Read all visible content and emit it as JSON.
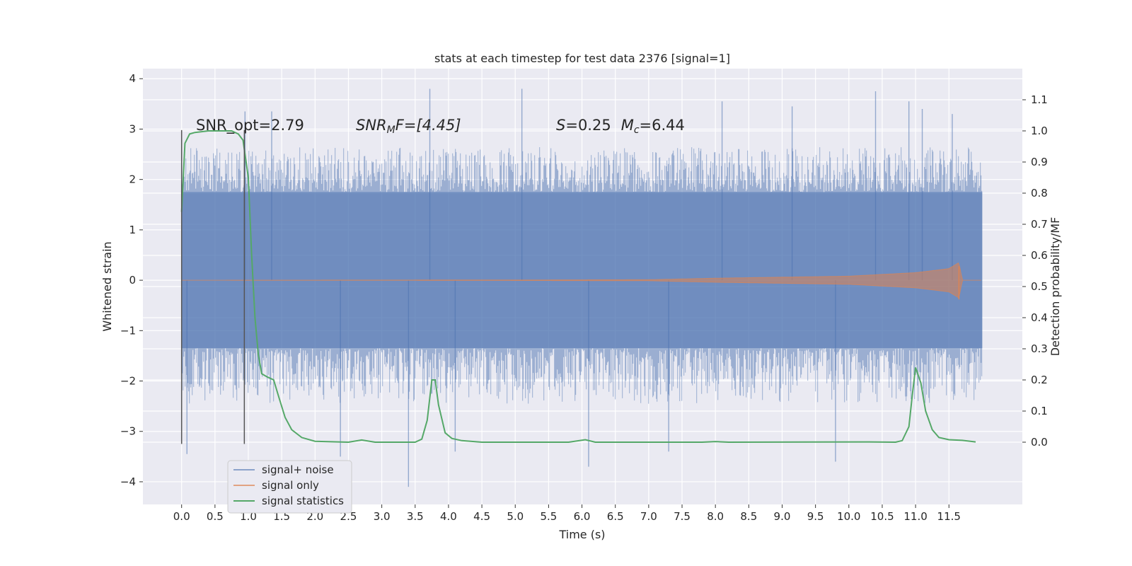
{
  "colors": {
    "background": "#eaeaf2",
    "grid": "#ffffff",
    "signal_noise": "#4c72b0",
    "signal_only": "#dd8452",
    "signal_statistics": "#55a868",
    "marker_lines": "#555555"
  },
  "chart_data": {
    "type": "line",
    "title": "stats at each timestep for test data 2376 [signal=1]",
    "xlabel": "Time (s)",
    "ylabel": "Whitened strain",
    "ylabel_right": "Detection probability/MF",
    "xlim": [
      -0.58,
      12.6
    ],
    "ylim": [
      -4.45,
      4.2
    ],
    "ylim_right": [
      -0.2,
      1.2
    ],
    "x_ticks": [
      0.0,
      0.5,
      1.0,
      1.5,
      2.0,
      2.5,
      3.0,
      3.5,
      4.0,
      4.5,
      5.0,
      5.5,
      6.0,
      6.5,
      7.0,
      7.5,
      8.0,
      8.5,
      9.0,
      9.5,
      10.0,
      10.5,
      11.0,
      11.5
    ],
    "x_tick_labels": [
      "0.0",
      "0.5",
      "1.0",
      "1.5",
      "2.0",
      "2.5",
      "3.0",
      "3.5",
      "4.0",
      "4.5",
      "5.0",
      "5.5",
      "6.0",
      "6.5",
      "7.0",
      "7.5",
      "8.0",
      "8.5",
      "9.0",
      "9.5",
      "10.0",
      "10.5",
      "11.0",
      "11.5"
    ],
    "y_ticks": [
      -4,
      -3,
      -2,
      -1,
      0,
      1,
      2,
      3,
      4
    ],
    "y_tick_labels": [
      "−4",
      "−3",
      "−2",
      "−1",
      "0",
      "1",
      "2",
      "3",
      "4"
    ],
    "y_right_ticks": [
      0.0,
      0.1,
      0.2,
      0.3,
      0.4,
      0.5,
      0.6,
      0.7,
      0.8,
      0.9,
      1.0,
      1.1
    ],
    "y_right_tick_labels": [
      "0.0",
      "0.1",
      "0.2",
      "0.3",
      "0.4",
      "0.5",
      "0.6",
      "0.7",
      "0.8",
      "0.9",
      "1.0",
      "1.1"
    ],
    "grid": true,
    "legend_position": "lower-left",
    "annotations": {
      "snr_opt": "SNR_opt=2.79",
      "snr_mf_prefix": "SNR",
      "snr_mf_sub": "M",
      "snr_mf_suffix": "F=[4.45]",
      "s_label": "S",
      "s_value": "=0.25",
      "mc_label": "M",
      "mc_sub": "c",
      "mc_value": "=6.44"
    },
    "vertical_markers": [
      {
        "x": 0.0,
        "y_range": [
          -3.25,
          2.98
        ]
      },
      {
        "x": 0.94,
        "y_range": [
          -3.25,
          2.98
        ]
      }
    ],
    "series": [
      {
        "name": "signal+ noise",
        "axis": "left",
        "x_range": [
          0.0,
          12.0
        ],
        "band_core": [
          -1.35,
          1.75
        ],
        "typical_peak_range": [
          -2.4,
          2.6
        ],
        "spikes": [
          {
            "x": 0.08,
            "y": -3.45
          },
          {
            "x": 0.95,
            "y": 3.35
          },
          {
            "x": 1.35,
            "y": 3.35
          },
          {
            "x": 3.4,
            "y": -4.1
          },
          {
            "x": 3.72,
            "y": 3.8
          },
          {
            "x": 2.38,
            "y": -3.5
          },
          {
            "x": 4.1,
            "y": -3.4
          },
          {
            "x": 5.1,
            "y": 3.8
          },
          {
            "x": 6.1,
            "y": -3.7
          },
          {
            "x": 8.1,
            "y": 3.55
          },
          {
            "x": 9.15,
            "y": 3.45
          },
          {
            "x": 10.4,
            "y": 3.75
          },
          {
            "x": 10.9,
            "y": 3.55
          },
          {
            "x": 11.1,
            "y": 3.4
          },
          {
            "x": 9.8,
            "y": -3.6
          },
          {
            "x": 11.55,
            "y": 3.3
          },
          {
            "x": 7.3,
            "y": -3.4
          }
        ]
      },
      {
        "name": "signal only",
        "axis": "left",
        "x_range": [
          0.0,
          12.0
        ],
        "envelope": [
          {
            "x": 0.0,
            "amp": 0.0
          },
          {
            "x": 5.0,
            "amp": 0.005
          },
          {
            "x": 7.0,
            "amp": 0.01
          },
          {
            "x": 8.0,
            "amp": 0.04
          },
          {
            "x": 9.0,
            "amp": 0.06
          },
          {
            "x": 10.0,
            "amp": 0.08
          },
          {
            "x": 11.0,
            "amp": 0.15
          },
          {
            "x": 11.5,
            "amp": 0.23
          },
          {
            "x": 11.65,
            "amp": 0.35
          },
          {
            "x": 11.7,
            "amp": 0.0
          },
          {
            "x": 12.0,
            "amp": 0.0
          }
        ]
      },
      {
        "name": "signal statistics",
        "axis": "right",
        "points": [
          [
            0.0,
            0.74
          ],
          [
            0.05,
            0.96
          ],
          [
            0.12,
            0.99
          ],
          [
            0.2,
            0.995
          ],
          [
            0.4,
            1.0
          ],
          [
            0.6,
            1.0
          ],
          [
            0.75,
            1.0
          ],
          [
            0.85,
            0.99
          ],
          [
            0.92,
            0.97
          ],
          [
            1.0,
            0.85
          ],
          [
            1.05,
            0.6
          ],
          [
            1.1,
            0.4
          ],
          [
            1.15,
            0.28
          ],
          [
            1.2,
            0.22
          ],
          [
            1.28,
            0.21
          ],
          [
            1.38,
            0.2
          ],
          [
            1.45,
            0.15
          ],
          [
            1.55,
            0.08
          ],
          [
            1.65,
            0.04
          ],
          [
            1.8,
            0.015
          ],
          [
            2.0,
            0.003
          ],
          [
            2.5,
            0.0
          ],
          [
            2.7,
            0.007
          ],
          [
            2.9,
            0.0
          ],
          [
            3.5,
            0.0
          ],
          [
            3.6,
            0.01
          ],
          [
            3.68,
            0.07
          ],
          [
            3.75,
            0.2
          ],
          [
            3.8,
            0.2
          ],
          [
            3.85,
            0.12
          ],
          [
            3.95,
            0.03
          ],
          [
            4.05,
            0.012
          ],
          [
            4.2,
            0.005
          ],
          [
            4.5,
            0.0
          ],
          [
            5.8,
            0.0
          ],
          [
            6.05,
            0.008
          ],
          [
            6.2,
            0.0
          ],
          [
            7.8,
            0.0
          ],
          [
            8.0,
            0.002
          ],
          [
            8.2,
            0.0
          ],
          [
            10.3,
            0.001
          ],
          [
            10.7,
            0.0
          ],
          [
            10.8,
            0.005
          ],
          [
            10.9,
            0.05
          ],
          [
            10.95,
            0.15
          ],
          [
            11.0,
            0.24
          ],
          [
            11.08,
            0.19
          ],
          [
            11.15,
            0.1
          ],
          [
            11.25,
            0.04
          ],
          [
            11.35,
            0.015
          ],
          [
            11.5,
            0.008
          ],
          [
            11.7,
            0.006
          ],
          [
            11.9,
            0.001
          ]
        ]
      }
    ]
  }
}
